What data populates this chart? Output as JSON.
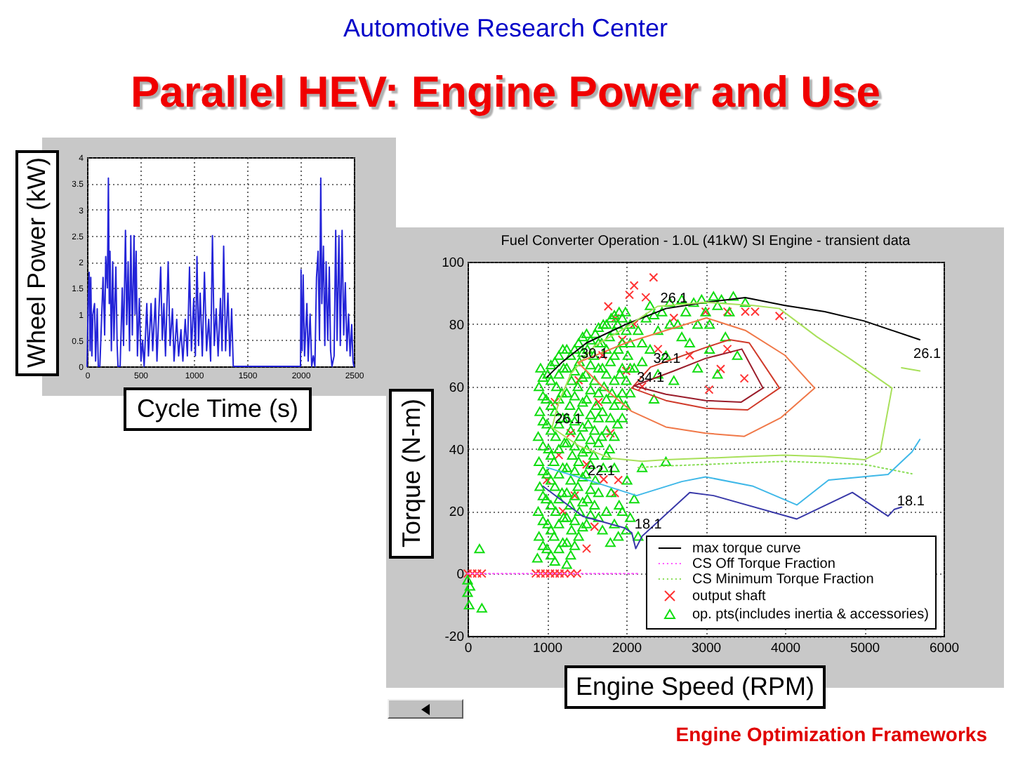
{
  "chart_data": [
    {
      "type": "other",
      "title": "Parallel HEV: Engine Power and Use",
      "annotations": [
        "Automotive Research Center",
        "Engine Optimization Frameworks"
      ]
    },
    {
      "type": "line",
      "xlabel": "Cycle Time (s)",
      "ylabel": "Wheel Power (kW)",
      "color": "#2424d8",
      "xlim": [
        0,
        2500
      ],
      "ylim": [
        0,
        4
      ],
      "xticks": [
        0,
        500,
        1000,
        1500,
        2000,
        2500
      ],
      "yticks": [
        0,
        0.5,
        1,
        1.5,
        2,
        2.5,
        3,
        3.5,
        4
      ],
      "grid": true,
      "x": [
        0,
        10,
        20,
        28,
        35,
        45,
        55,
        70,
        80,
        95,
        105,
        120,
        150,
        165,
        175,
        190,
        200,
        208,
        215,
        228,
        240,
        252,
        270,
        282,
        290,
        310,
        330,
        342,
        360,
        372,
        385,
        398,
        410,
        424,
        440,
        450,
        460,
        472,
        490,
        505,
        520,
        535,
        560,
        575,
        600,
        615,
        640,
        655,
        690,
        705,
        720,
        735,
        760,
        778,
        800,
        815,
        840,
        858,
        880,
        898,
        920,
        940,
        960,
        978,
        1000,
        1015,
        1030,
        1045,
        1060,
        1080,
        1100,
        1120,
        1140,
        1158,
        1175,
        1192,
        1210,
        1228,
        1250,
        1265,
        1280,
        1298,
        1320,
        1338,
        1355,
        1370,
        2000,
        2005,
        2015,
        2025,
        2038,
        2060,
        2072,
        2090,
        2105,
        2120,
        2135,
        2150,
        2165,
        2178,
        2190,
        2200,
        2215,
        2228,
        2240,
        2255,
        2270,
        2282,
        2295,
        2315,
        2330,
        2343,
        2360,
        2373,
        2390,
        2405,
        2420,
        2435,
        2450,
        2465,
        2480,
        2492,
        2500
      ],
      "values": [
        0,
        1.2,
        1.8,
        0.3,
        1.7,
        0.2,
        1,
        1.2,
        0.1,
        1.1,
        0,
        0,
        1.7,
        0.6,
        2.1,
        1.5,
        3.6,
        1.2,
        2.2,
        0.3,
        2,
        0.5,
        1.9,
        0.4,
        0,
        0,
        1.5,
        0.4,
        2.6,
        0.8,
        2,
        0.3,
        2.5,
        0.6,
        2.5,
        1,
        2.2,
        0.2,
        1.3,
        0.1,
        0.5,
        0,
        1.2,
        0.2,
        1.2,
        0.3,
        1.3,
        0.1,
        1.9,
        0.5,
        1.2,
        0.2,
        2,
        0.4,
        1.1,
        0.1,
        0.9,
        0.2,
        0.7,
        0.1,
        0.9,
        0.2,
        1.9,
        0.3,
        1.3,
        0.2,
        2.1,
        0.4,
        1.4,
        0.2,
        1.8,
        0.3,
        0.9,
        0.1,
        2.5,
        0.4,
        1.1,
        0.2,
        1.3,
        0.3,
        2.3,
        0.3,
        1.4,
        0.2,
        1.1,
        0,
        0,
        1.85,
        0.3,
        1.75,
        0.2,
        1.2,
        0.1,
        1,
        0,
        0.2,
        0,
        1.7,
        2.2,
        0.5,
        3.6,
        1.2,
        2.3,
        0.4,
        2,
        0.5,
        1.9,
        0.3,
        0,
        0.2,
        2.6,
        0.5,
        2.5,
        0.4,
        2.6,
        0.6,
        1.6,
        0.3,
        1,
        0.2,
        0.8,
        0.1,
        0
      ]
    },
    {
      "type": "line",
      "title": "Fuel Converter Operation - 1.0L (41kW) SI Engine - transient data",
      "xlabel": "Engine Speed (RPM)",
      "ylabel": "Torque (N-m)",
      "xlim": [
        0,
        6000
      ],
      "ylim": [
        -20,
        100
      ],
      "xticks": [
        0,
        1000,
        2000,
        3000,
        4000,
        5000,
        6000
      ],
      "yticks": [
        -20,
        0,
        20,
        40,
        60,
        80,
        100
      ],
      "grid": true,
      "legend": "bottom right",
      "series": [
        {
          "name": "max torque curve",
          "type": "line",
          "color": "#000000",
          "x": [
            1000,
            1200,
            1500,
            2000,
            2500,
            3000,
            3500,
            4000,
            4500,
            5000,
            5700
          ],
          "values": [
            63,
            68,
            74,
            80,
            85,
            87,
            88.5,
            86,
            84,
            81,
            75
          ]
        },
        {
          "name": "CS Off Torque Fraction",
          "type": "line",
          "line_style": "dotted",
          "color": "#ff55ff",
          "x": [
            0,
            500,
            1000,
            1500,
            2150
          ],
          "values": [
            0,
            0,
            0,
            0,
            0
          ]
        },
        {
          "name": "CS Minimum Torque Fraction",
          "type": "line",
          "line_style": "dotted",
          "color": "#88dd55",
          "x": [
            2150,
            2500,
            3000,
            3500,
            4000,
            4500,
            5000,
            5600
          ],
          "values": [
            34,
            34.5,
            35,
            35.5,
            36,
            35.5,
            35,
            32
          ]
        },
        {
          "name": "output shaft",
          "type": "scatter",
          "marker": "cross",
          "color": "#ff3333",
          "x": [
            0,
            60,
            120,
            180,
            860,
            920,
            980,
            1040,
            1100,
            1160,
            1220,
            1300,
            1380,
            2344,
            2099,
            2040,
            2246,
            1773,
            1862,
            1000,
            1100,
            1200,
            1300,
            1400,
            1500,
            1600,
            1700,
            1800,
            1900,
            2000,
            1500,
            1150,
            1350,
            1650,
            1715,
            1856,
            1950,
            2100,
            2200,
            2400,
            2600,
            2800,
            3000,
            3275,
            3624,
            3931,
            3275,
            3190,
            3488,
            3044,
            3500
          ],
          "values": [
            0,
            0,
            0,
            0,
            0,
            0,
            0,
            0,
            0,
            0,
            0,
            0,
            0,
            95,
            92.4,
            89.4,
            88.6,
            85.7,
            81.9,
            30,
            55,
            20,
            45,
            62,
            35,
            15,
            70,
            45,
            30,
            65,
            8,
            38,
            25,
            55,
            30.2,
            25.8,
            75,
            80,
            60,
            72,
            82,
            70,
            84,
            84,
            84,
            82.6,
            72,
            65.6,
            62.6,
            59,
            84
          ]
        },
        {
          "name": "op. pts(includes inertia & accessories)",
          "type": "scatter",
          "marker": "triangle",
          "color": "#11dd11",
          "x": [
            0,
            0,
            20,
            30,
            150,
            180,
            1250,
            880,
            900,
            890,
            910,
            900,
            890,
            910,
            900,
            920,
            1000,
            1010,
            990,
            1000,
            1020,
            1000,
            990,
            1010,
            1100,
            1090,
            1110,
            1100,
            1090,
            1110,
            1100,
            1120,
            1100,
            1200,
            1210,
            1190,
            1200,
            1220,
            1200,
            1190,
            1210,
            1200,
            1300,
            1310,
            1290,
            1300,
            1320,
            1300,
            1290,
            1310,
            1300,
            1400,
            1410,
            1390,
            1400,
            1420,
            1400,
            1390,
            1410,
            1400,
            1500,
            1510,
            1490,
            1500,
            1520,
            1500,
            1490,
            1510,
            1500,
            1600,
            1610,
            1590,
            1600,
            1620,
            1600,
            1590,
            1610,
            1700,
            1710,
            1690,
            1700,
            1720,
            1700,
            1690,
            1710,
            1800,
            1810,
            1790,
            1800,
            1820,
            1800,
            1790,
            1810,
            1900,
            1910,
            1890,
            1900,
            1920,
            1900,
            1890,
            1910,
            2000,
            2010,
            1990,
            2000,
            2020,
            2000,
            1990,
            2100,
            2150,
            2200,
            2100,
            2200,
            2250,
            2300,
            2350,
            2400,
            2450,
            2500,
            2500,
            2550,
            2600,
            2650,
            2700,
            2800,
            2850,
            2900,
            2950,
            3000,
            3050,
            3100,
            3150,
            3200,
            3250,
            3350,
            3400,
            3500,
            950,
            950,
            950,
            950,
            950,
            950,
            950,
            950,
            1050,
            1050,
            1050,
            1050,
            1050,
            1050,
            1050,
            1050,
            1050,
            1150,
            1150,
            1150,
            1150,
            1150,
            1150,
            1150,
            1150,
            1150,
            1250,
            1250,
            1250,
            1250,
            1250,
            1250,
            1250,
            1250,
            1250,
            1350,
            1350,
            1350,
            1350,
            1350,
            1350,
            1350,
            1350,
            1350,
            1450,
            1450,
            1450,
            1450,
            1450,
            1450,
            1450,
            1450,
            1450,
            1550,
            1550,
            1550,
            1550,
            1550,
            1550,
            1550,
            1550,
            1650,
            1650,
            1650,
            1650,
            1650,
            1650,
            1650,
            1650,
            1750,
            1750,
            1750,
            1750,
            1750,
            1750,
            1750,
            1850,
            1850,
            1850,
            1850,
            1850,
            1850,
            1850,
            1850,
            1950,
            1950,
            1950,
            1950,
            1950,
            1950,
            2050,
            2050,
            2050,
            2050,
            2050,
            2150,
            2350,
            2550,
            2750,
            3300,
            2200,
            2400,
            2700,
            3050,
            3150,
            2900,
            2300
          ],
          "values": [
            -2,
            -6,
            -10,
            -4,
            8,
            -11,
            3,
            5,
            12,
            20,
            28,
            36,
            44,
            52,
            60,
            66,
            8,
            16,
            24,
            32,
            40,
            48,
            56,
            64,
            4,
            12,
            20,
            28,
            36,
            44,
            52,
            60,
            68,
            10,
            18,
            26,
            34,
            42,
            50,
            58,
            66,
            72,
            6,
            14,
            22,
            30,
            38,
            46,
            54,
            62,
            70,
            12,
            20,
            28,
            36,
            44,
            52,
            60,
            68,
            74,
            16,
            24,
            32,
            40,
            48,
            56,
            64,
            72,
            77,
            22,
            30,
            38,
            46,
            54,
            62,
            70,
            77,
            14,
            34,
            44,
            52,
            60,
            66,
            74,
            80,
            10,
            26,
            40,
            50,
            58,
            68,
            76,
            82,
            12,
            22,
            48,
            56,
            64,
            72,
            80,
            84,
            14,
            30,
            54,
            62,
            70,
            78,
            84,
            24,
            12,
            34,
            66,
            74,
            82,
            86,
            56,
            78,
            84,
            36,
            70,
            87,
            62,
            80,
            88,
            74,
            87,
            66,
            88,
            84,
            72,
            89,
            64,
            88,
            76,
            89,
            70,
            87,
            9,
            17,
            25,
            33,
            41,
            49,
            57,
            63,
            6,
            14,
            22,
            30,
            38,
            46,
            54,
            62,
            67,
            8,
            16,
            24,
            32,
            40,
            48,
            56,
            64,
            70,
            10,
            18,
            26,
            34,
            42,
            50,
            58,
            66,
            72,
            9,
            17,
            25,
            33,
            41,
            49,
            57,
            65,
            72,
            15,
            23,
            31,
            39,
            47,
            55,
            63,
            71,
            76,
            19,
            27,
            35,
            43,
            51,
            59,
            67,
            75,
            18,
            26,
            42,
            50,
            58,
            66,
            74,
            79,
            20,
            38,
            46,
            56,
            64,
            72,
            80,
            16,
            34,
            44,
            54,
            62,
            70,
            78,
            83,
            20,
            50,
            58,
            66,
            74,
            82,
            18,
            58,
            66,
            74,
            80,
            78,
            83,
            80,
            84,
            84,
            68,
            64,
            76,
            80,
            86,
            80,
            72
          ]
        },
        {
          "type": "line",
          "color": "#a8e05a",
          "x": [
            1064,
            1150,
            1300,
            1600,
            2000,
            2394,
            3000,
            3600,
            3930,
            4400,
            4848,
            5349,
            5410,
            5470,
            5700
          ],
          "values": [
            46.8,
            55,
            64,
            73,
            79,
            85.7,
            87,
            86,
            85,
            76,
            68.4,
            59.5,
            null,
            66,
            65
          ]
        },
        {
          "type": "line",
          "color": "#a8e05a",
          "x": [
            1064,
            1400,
            1800,
            2200,
            2500,
            3000,
            3500,
            4000,
            4500,
            5000,
            5200,
            5349
          ],
          "values": [
            46.8,
            41,
            37,
            36,
            36.5,
            37,
            37.5,
            38,
            37.5,
            36.5,
            39,
            59.5
          ]
        },
        {
          "type": "line",
          "color": "#3fb8e8",
          "x": [
            1000,
            1478,
            2130,
            2700,
            3000,
            3600,
            4150,
            4550,
            5300,
            5600,
            5700
          ],
          "values": [
            34,
            30.3,
            25,
            29.5,
            31,
            28,
            22,
            30,
            31.8,
            39,
            43
          ]
        },
        {
          "type": "line",
          "color": "#3838a8",
          "x": [
            950,
            1450,
            1980,
            2069,
            2120,
            2200,
            2800,
            3100,
            4150,
            4850,
            5300,
            5379,
            5470
          ],
          "values": [
            28,
            18.4,
            14.6,
            13.1,
            8,
            12,
            26,
            25,
            17.5,
            26,
            18.4,
            20.6,
            21.3
          ]
        },
        {
          "type": "line",
          "color": "#f07848",
          "x": [
            1390,
            2000,
            2500,
            3009,
            3500,
            4000,
            4374
          ],
          "values": [
            67.7,
            74,
            78,
            82,
            78,
            70,
            59.5
          ]
        },
        {
          "type": "line",
          "color": "#f07848",
          "x": [
            1390,
            1700,
            2069,
            2500,
            3000,
            3488,
            3950,
            4374
          ],
          "values": [
            67.7,
            60,
            52,
            47,
            45,
            44,
            50,
            59.5
          ]
        },
        {
          "type": "line",
          "color": "#d03a2a",
          "x": [
            2069,
            2305,
            3000,
            3300,
            3550,
            3931
          ],
          "values": [
            59.5,
            66.2,
            72.5,
            75,
            74,
            59.5
          ]
        },
        {
          "type": "line",
          "color": "#d03a2a",
          "x": [
            2069,
            2500,
            3000,
            3530,
            3931
          ],
          "values": [
            59.5,
            55.5,
            53,
            52.5,
            59.5
          ]
        },
        {
          "type": "line",
          "color": "#9a1c2a",
          "x": [
            2099,
            2600,
            3000,
            3457,
            3723
          ],
          "values": [
            60.2,
            65,
            69,
            72,
            59.5
          ]
        },
        {
          "type": "line",
          "color": "#9a1c2a",
          "x": [
            2099,
            2500,
            3000,
            3450,
            3723
          ],
          "values": [
            60.2,
            57.5,
            55.5,
            55,
            59.5
          ]
        }
      ],
      "annotations": [
        {
          "text": "26.1",
          "x": 2394,
          "y": 85.7
        },
        {
          "text": "30.1",
          "x": 1390,
          "y": 67.7
        },
        {
          "text": "32.1",
          "x": 2305,
          "y": 66.2
        },
        {
          "text": "34.1",
          "x": 2099,
          "y": 60.2
        },
        {
          "text": "26.1",
          "x": 1064,
          "y": 46.8
        },
        {
          "text": "22.1",
          "x": 1478,
          "y": 30.3
        },
        {
          "text": "18.1",
          "x": 2069,
          "y": 13.1
        },
        {
          "text": "18.1",
          "x": 5379,
          "y": 20.6
        },
        {
          "text": "26.1",
          "x": 5585,
          "y": 67.7
        }
      ]
    }
  ]
}
